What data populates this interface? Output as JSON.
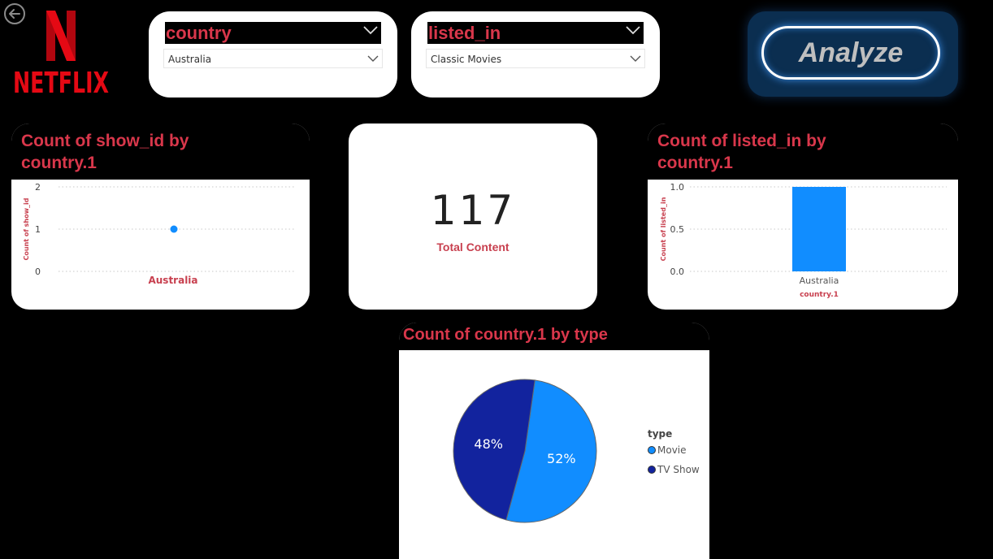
{
  "nav": {
    "back_icon": "back-arrow-icon"
  },
  "logo": {
    "text": "NETFLIX",
    "accent": "#e50914"
  },
  "slicers": [
    {
      "title": "country",
      "selected": "Australia"
    },
    {
      "title": "listed_in",
      "selected": "Classic Movies"
    }
  ],
  "analyze": {
    "label": "Analyze"
  },
  "scatter_card": {
    "title_line1": "Count of show_id by",
    "title_line2": "country.1"
  },
  "kpi": {
    "value": "117",
    "label": "Total Content"
  },
  "bar_card": {
    "title_line1": "Count of listed_in by",
    "title_line2": "country.1"
  },
  "pie_card": {
    "title": "Count of country.1 by type"
  },
  "chart_data": [
    {
      "type": "scatter",
      "title": "Count of show_id by country.1",
      "xlabel": "Australia",
      "ylabel": "Count of show_id",
      "categories": [
        "Australia"
      ],
      "values": [
        1
      ],
      "ylim": [
        0,
        2
      ],
      "yticks": [
        "0",
        "1",
        "2"
      ],
      "color": "#118dff"
    },
    {
      "type": "bar",
      "title": "Count of listed_in by country.1",
      "xlabel": "country.1",
      "ylabel": "Count of listed_in",
      "categories": [
        "Australia"
      ],
      "values": [
        1.0
      ],
      "ylim": [
        0,
        1
      ],
      "yticks": [
        "0.0",
        "0.5",
        "1.0"
      ],
      "color": "#118dff"
    },
    {
      "type": "pie",
      "title": "Count of country.1 by type",
      "legend_title": "type",
      "legend_position": "right",
      "slices": [
        {
          "label": "Movie",
          "value": 52,
          "display": "52%",
          "color": "#118dff"
        },
        {
          "label": "TV Show",
          "value": 48,
          "display": "48%",
          "color": "#12239e"
        }
      ]
    }
  ]
}
